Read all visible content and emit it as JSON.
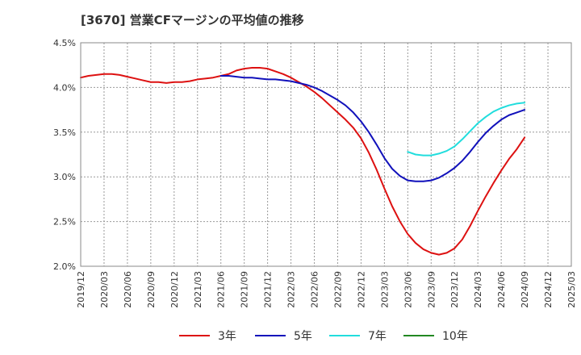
{
  "chart_data": {
    "type": "line",
    "title": "[3670]  営業CFマージンの平均値の推移",
    "xlabel": "",
    "ylabel": "",
    "ylim": [
      2.0,
      4.5
    ],
    "yticks": [
      2.0,
      2.5,
      3.0,
      3.5,
      4.0,
      4.5
    ],
    "ytick_labels": [
      "2.0%",
      "2.5%",
      "3.0%",
      "3.5%",
      "4.0%",
      "4.5%"
    ],
    "x_start": "2019/12",
    "x_end": "2025/03",
    "xtick_labels": [
      "2019/12",
      "2020/03",
      "2020/06",
      "2020/09",
      "2020/12",
      "2021/03",
      "2021/06",
      "2021/09",
      "2021/12",
      "2022/03",
      "2022/06",
      "2022/09",
      "2022/12",
      "2023/03",
      "2023/06",
      "2023/09",
      "2023/12",
      "2024/03",
      "2024/06",
      "2024/09",
      "2024/12",
      "2025/03"
    ],
    "grid": true,
    "legend_position": "bottom",
    "series": [
      {
        "name": "3年",
        "color": "#dd1111",
        "points": [
          [
            "2019/12",
            4.11
          ],
          [
            "2020/01",
            4.13
          ],
          [
            "2020/02",
            4.14
          ],
          [
            "2020/03",
            4.15
          ],
          [
            "2020/04",
            4.15
          ],
          [
            "2020/05",
            4.14
          ],
          [
            "2020/06",
            4.12
          ],
          [
            "2020/07",
            4.1
          ],
          [
            "2020/08",
            4.08
          ],
          [
            "2020/09",
            4.06
          ],
          [
            "2020/10",
            4.06
          ],
          [
            "2020/11",
            4.05
          ],
          [
            "2020/12",
            4.06
          ],
          [
            "2021/01",
            4.06
          ],
          [
            "2021/02",
            4.07
          ],
          [
            "2021/03",
            4.09
          ],
          [
            "2021/04",
            4.1
          ],
          [
            "2021/05",
            4.11
          ],
          [
            "2021/06",
            4.13
          ],
          [
            "2021/07",
            4.15
          ],
          [
            "2021/08",
            4.19
          ],
          [
            "2021/09",
            4.21
          ],
          [
            "2021/10",
            4.22
          ],
          [
            "2021/11",
            4.22
          ],
          [
            "2021/12",
            4.21
          ],
          [
            "2022/01",
            4.18
          ],
          [
            "2022/02",
            4.15
          ],
          [
            "2022/03",
            4.11
          ],
          [
            "2022/04",
            4.06
          ],
          [
            "2022/05",
            4.01
          ],
          [
            "2022/06",
            3.95
          ],
          [
            "2022/07",
            3.88
          ],
          [
            "2022/08",
            3.8
          ],
          [
            "2022/09",
            3.72
          ],
          [
            "2022/10",
            3.64
          ],
          [
            "2022/11",
            3.55
          ],
          [
            "2022/12",
            3.43
          ],
          [
            "2023/01",
            3.27
          ],
          [
            "2023/02",
            3.08
          ],
          [
            "2023/03",
            2.87
          ],
          [
            "2023/04",
            2.67
          ],
          [
            "2023/05",
            2.5
          ],
          [
            "2023/06",
            2.36
          ],
          [
            "2023/07",
            2.26
          ],
          [
            "2023/08",
            2.19
          ],
          [
            "2023/09",
            2.15
          ],
          [
            "2023/10",
            2.13
          ],
          [
            "2023/11",
            2.15
          ],
          [
            "2023/12",
            2.2
          ],
          [
            "2024/01",
            2.3
          ],
          [
            "2024/02",
            2.45
          ],
          [
            "2024/03",
            2.62
          ],
          [
            "2024/04",
            2.78
          ],
          [
            "2024/05",
            2.93
          ],
          [
            "2024/06",
            3.07
          ],
          [
            "2024/07",
            3.2
          ],
          [
            "2024/08",
            3.31
          ],
          [
            "2024/09",
            3.44
          ]
        ]
      },
      {
        "name": "5年",
        "color": "#1111bb",
        "points": [
          [
            "2021/06",
            4.13
          ],
          [
            "2021/07",
            4.13
          ],
          [
            "2021/08",
            4.12
          ],
          [
            "2021/09",
            4.11
          ],
          [
            "2021/10",
            4.11
          ],
          [
            "2021/11",
            4.1
          ],
          [
            "2021/12",
            4.09
          ],
          [
            "2022/01",
            4.09
          ],
          [
            "2022/02",
            4.08
          ],
          [
            "2022/03",
            4.07
          ],
          [
            "2022/04",
            4.05
          ],
          [
            "2022/05",
            4.03
          ],
          [
            "2022/06",
            4.0
          ],
          [
            "2022/07",
            3.96
          ],
          [
            "2022/08",
            3.91
          ],
          [
            "2022/09",
            3.86
          ],
          [
            "2022/10",
            3.8
          ],
          [
            "2022/11",
            3.72
          ],
          [
            "2022/12",
            3.62
          ],
          [
            "2023/01",
            3.5
          ],
          [
            "2023/02",
            3.36
          ],
          [
            "2023/03",
            3.21
          ],
          [
            "2023/04",
            3.09
          ],
          [
            "2023/05",
            3.01
          ],
          [
            "2023/06",
            2.96
          ],
          [
            "2023/07",
            2.95
          ],
          [
            "2023/08",
            2.95
          ],
          [
            "2023/09",
            2.96
          ],
          [
            "2023/10",
            2.99
          ],
          [
            "2023/11",
            3.04
          ],
          [
            "2023/12",
            3.1
          ],
          [
            "2024/01",
            3.18
          ],
          [
            "2024/02",
            3.28
          ],
          [
            "2024/03",
            3.39
          ],
          [
            "2024/04",
            3.49
          ],
          [
            "2024/05",
            3.57
          ],
          [
            "2024/06",
            3.64
          ],
          [
            "2024/07",
            3.69
          ],
          [
            "2024/08",
            3.72
          ],
          [
            "2024/09",
            3.75
          ]
        ]
      },
      {
        "name": "7年",
        "color": "#22dddd",
        "points": [
          [
            "2023/06",
            3.28
          ],
          [
            "2023/07",
            3.25
          ],
          [
            "2023/08",
            3.24
          ],
          [
            "2023/09",
            3.24
          ],
          [
            "2023/10",
            3.26
          ],
          [
            "2023/11",
            3.29
          ],
          [
            "2023/12",
            3.34
          ],
          [
            "2024/01",
            3.42
          ],
          [
            "2024/02",
            3.51
          ],
          [
            "2024/03",
            3.6
          ],
          [
            "2024/04",
            3.67
          ],
          [
            "2024/05",
            3.73
          ],
          [
            "2024/06",
            3.77
          ],
          [
            "2024/07",
            3.8
          ],
          [
            "2024/08",
            3.82
          ],
          [
            "2024/09",
            3.83
          ]
        ]
      },
      {
        "name": "10年",
        "color": "#228822",
        "points": []
      }
    ]
  }
}
